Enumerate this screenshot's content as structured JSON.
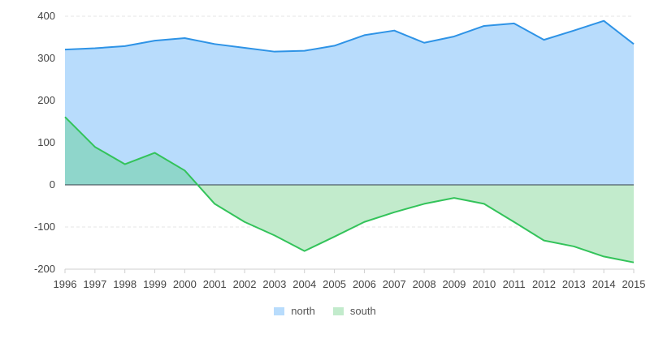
{
  "chart_data": {
    "type": "area",
    "x": [
      1996,
      1997,
      1998,
      1999,
      2000,
      2001,
      2002,
      2003,
      2004,
      2005,
      2006,
      2007,
      2008,
      2009,
      2010,
      2011,
      2012,
      2013,
      2014,
      2015
    ],
    "series": [
      {
        "name": "north",
        "color": "#2e93e6",
        "fill": "#b8dcfc",
        "values": [
          321,
          324,
          329,
          342,
          348,
          334,
          325,
          316,
          318,
          330,
          355,
          366,
          337,
          352,
          377,
          383,
          344,
          366,
          389,
          334
        ]
      },
      {
        "name": "south",
        "color": "#33c35a",
        "fill": "#c2ebcc",
        "values": [
          161,
          90,
          49,
          76,
          34,
          -45,
          -88,
          -120,
          -157,
          -123,
          -88,
          -65,
          -45,
          -31,
          -45,
          -88,
          -132,
          -146,
          -170,
          -184
        ]
      }
    ],
    "overlap_fill": "#8fd6cb",
    "ylim": [
      -200,
      400
    ],
    "yticks": [
      -200,
      -100,
      0,
      100,
      200,
      300,
      400
    ],
    "ytick_labels": [
      "-200",
      "-100",
      "0",
      "100",
      "200",
      "300",
      "400"
    ],
    "grid": true,
    "legend_position": "bottom-center",
    "title": "",
    "xlabel": "",
    "ylabel": ""
  },
  "legend": {
    "north": "north",
    "south": "south"
  }
}
